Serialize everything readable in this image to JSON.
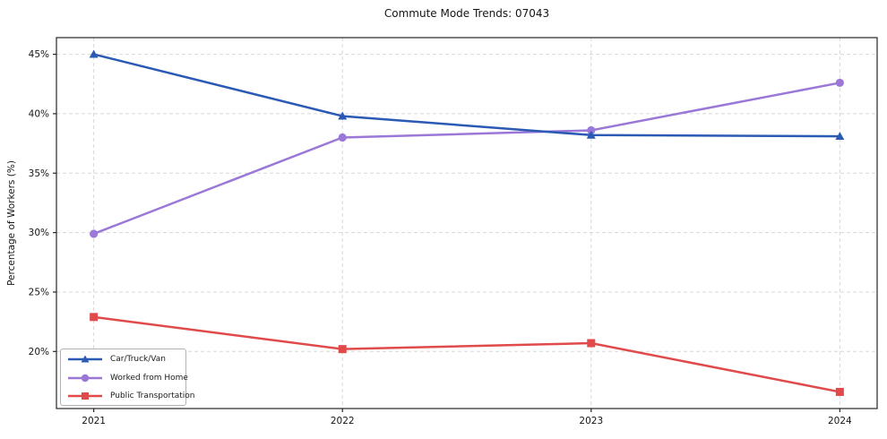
{
  "figure": {
    "background": "#ffffff",
    "text_color": "#151515",
    "grid_color": "#d7d7d7",
    "frame_color": "#262626",
    "legend_border_color": "#b3b3b3"
  },
  "chart_data": {
    "type": "line",
    "title": "Commute Mode Trends: 07043",
    "xlabel": "",
    "ylabel": "Percentage of Workers (%)",
    "x": [
      2021,
      2022,
      2023,
      2024
    ],
    "xtick_labels": [
      "2021",
      "2022",
      "2023",
      "2024"
    ],
    "ytick_values": [
      20,
      25,
      30,
      35,
      40,
      45
    ],
    "ytick_labels": [
      "20%",
      "25%",
      "30%",
      "35%",
      "40%",
      "45%"
    ],
    "xlim": [
      2020.85,
      2024.15
    ],
    "ylim": [
      15.2,
      46.4
    ],
    "grid": true,
    "grid_style": "dashed",
    "legend_position": "lower-left",
    "series": [
      {
        "name": "Car/Truck/Van",
        "color": "#2a5ab4",
        "marker": "triangle",
        "values": [
          45.0,
          39.8,
          38.2,
          38.1
        ]
      },
      {
        "name": "Worked from Home",
        "color": "#9b78d8",
        "marker": "circle",
        "values": [
          29.9,
          38.0,
          38.6,
          42.6
        ]
      },
      {
        "name": "Public Transportation",
        "color": "#e04a4a",
        "marker": "square",
        "values": [
          22.9,
          20.2,
          20.7,
          16.6
        ]
      }
    ]
  }
}
